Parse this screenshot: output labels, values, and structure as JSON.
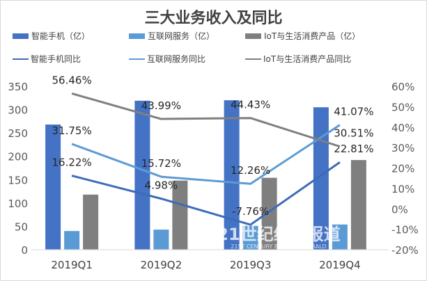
{
  "chart_data": {
    "type": "bar",
    "title": "三大业务收入及同比",
    "categories": [
      "2019Q1",
      "2019Q2",
      "2019Q3",
      "2019Q4"
    ],
    "series": [
      {
        "name": "智能手机（亿）",
        "kind": "bar",
        "axis": "left",
        "color": "#4472c4",
        "values": [
          268,
          319,
          320,
          305
        ]
      },
      {
        "name": "互联网服务（亿）",
        "kind": "bar",
        "axis": "left",
        "color": "#5b9bd5",
        "values": [
          40,
          43,
          51,
          54
        ]
      },
      {
        "name": "IoT与生活消费产品（亿）",
        "kind": "bar",
        "axis": "left",
        "color": "#7f7f7f",
        "values": [
          118,
          148,
          154,
          192
        ]
      },
      {
        "name": "智能手机同比",
        "kind": "line",
        "axis": "right",
        "color": "#3d6bb8",
        "values": [
          16.22,
          4.98,
          -7.76,
          22.81
        ],
        "labels": [
          "16.22%",
          "4.98%",
          "-7.76%",
          "22.81%"
        ]
      },
      {
        "name": "互联网服务同比",
        "kind": "line",
        "axis": "right",
        "color": "#5b9bd5",
        "values": [
          31.75,
          15.72,
          12.26,
          41.07
        ],
        "labels": [
          "31.75%",
          "15.72%",
          "12.26%",
          "41.07%"
        ]
      },
      {
        "name": "IoT与生活消费产品同比",
        "kind": "line",
        "axis": "right",
        "color": "#7f7f7f",
        "values": [
          56.46,
          43.99,
          44.43,
          30.51
        ],
        "labels": [
          "56.46%",
          "43.99%",
          "44.43%",
          "30.51%"
        ]
      }
    ],
    "left_axis": {
      "ylim": [
        0,
        350
      ],
      "ticks": [
        "0",
        "50",
        "100",
        "150",
        "200",
        "250",
        "300",
        "350"
      ]
    },
    "right_axis": {
      "ylim": [
        -20,
        60
      ],
      "ticks": [
        "-20%",
        "-10%",
        "0%",
        "10%",
        "20%",
        "30%",
        "40%",
        "50%",
        "60%"
      ]
    },
    "grid": false,
    "legend_placement": "top"
  },
  "watermark": {
    "cn": "21世纪经济报道",
    "en": "21ST CENTURY BUSINESS HERALD"
  }
}
